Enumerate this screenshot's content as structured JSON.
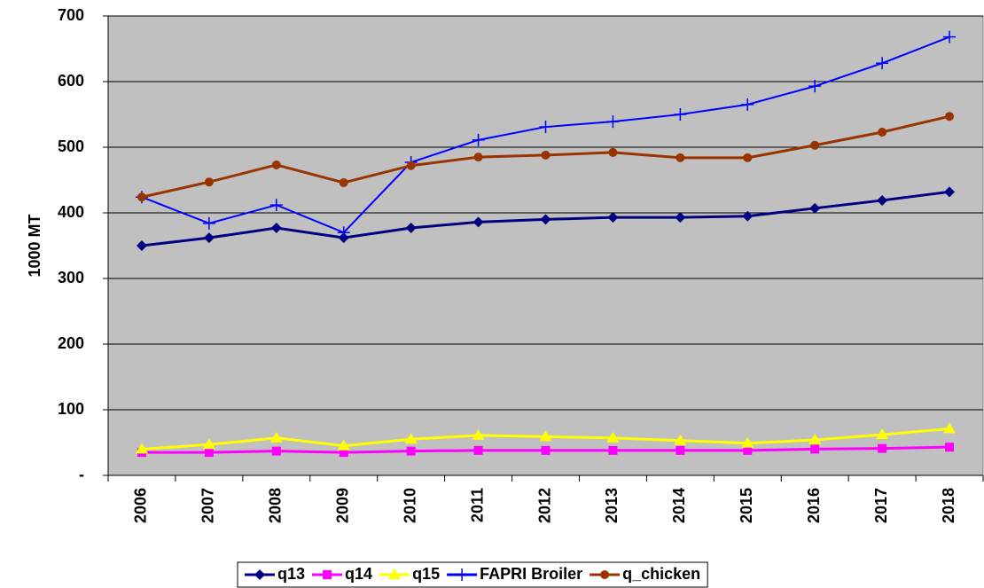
{
  "chart_data": {
    "type": "line",
    "y_label": "1000 MT",
    "categories": [
      "2006",
      "2007",
      "2008",
      "2009",
      "2010",
      "2011",
      "2012",
      "2013",
      "2014",
      "2015",
      "2016",
      "2017",
      "2018"
    ],
    "series": [
      {
        "name": "q13",
        "color": "#000080",
        "marker": "diamond",
        "values": [
          350,
          362,
          377,
          362,
          377,
          386,
          390,
          393,
          393,
          395,
          407,
          419,
          432
        ]
      },
      {
        "name": "q14",
        "color": "#ff00ff",
        "marker": "square",
        "values": [
          35,
          35,
          37,
          35,
          37,
          38,
          38,
          38,
          38,
          38,
          40,
          41,
          43
        ]
      },
      {
        "name": "q15",
        "color": "#ffff00",
        "marker": "triangle",
        "values": [
          40,
          47,
          57,
          45,
          55,
          61,
          59,
          57,
          53,
          49,
          54,
          62,
          71
        ]
      },
      {
        "name": "FAPRI Broiler",
        "color": "#0000ff",
        "marker": "plus",
        "values": [
          424,
          384,
          412,
          370,
          477,
          511,
          531,
          539,
          550,
          565,
          593,
          628,
          668
        ]
      },
      {
        "name": "q_chicken",
        "color": "#993300",
        "marker": "circle",
        "values": [
          424,
          447,
          473,
          446,
          472,
          485,
          488,
          492,
          484,
          484,
          503,
          523,
          547
        ]
      }
    ],
    "ylim": [
      0,
      700
    ],
    "yticks": [
      {
        "value": 0,
        "label": "-"
      },
      100,
      200,
      300,
      400,
      500,
      600,
      700
    ],
    "grid": true,
    "legend": "bottom"
  }
}
